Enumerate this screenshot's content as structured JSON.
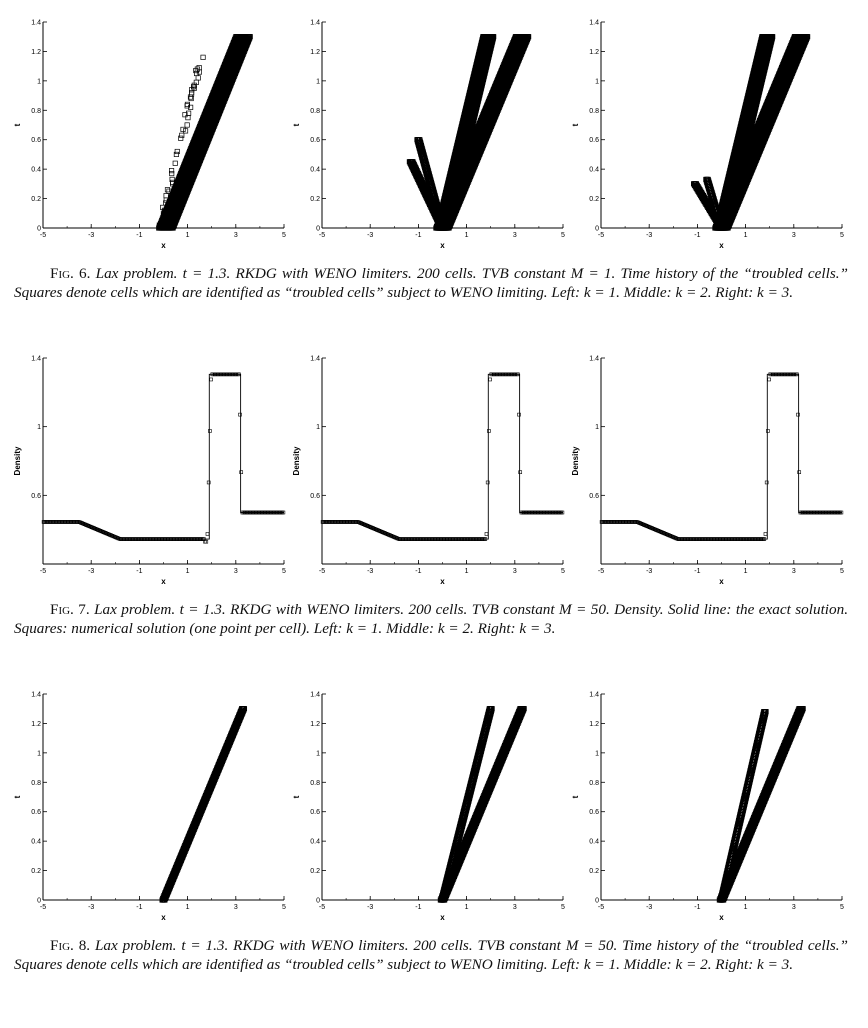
{
  "figures": [
    {
      "id": "fig6",
      "label": "Fig. 6.",
      "caption": "Lax problem. t = 1.3. RKDG with WENO limiters. 200 cells. TVB constant M = 1. Time history of the “troubled cells.” Squares denote cells which are identified as “troubled cells” subject to WENO limiting. Left: k = 1. Middle: k = 2. Right: k = 3.",
      "panels": [
        {
          "name": "Left",
          "xlabel": "x",
          "ylabel": "t"
        },
        {
          "name": "Middle",
          "xlabel": "x",
          "ylabel": "t"
        },
        {
          "name": "Right",
          "xlabel": "x",
          "ylabel": "t"
        }
      ]
    },
    {
      "id": "fig7",
      "label": "Fig. 7.",
      "caption": "Lax problem. t = 1.3. RKDG with WENO limiters. 200 cells. TVB constant M = 50. Density. Solid line: the exact solution. Squares: numerical solution (one point per cell). Left: k = 1. Middle: k = 2. Right: k = 3.",
      "panels": [
        {
          "name": "Left",
          "xlabel": "x",
          "ylabel": "Density"
        },
        {
          "name": "Middle",
          "xlabel": "x",
          "ylabel": "Density"
        },
        {
          "name": "Right",
          "xlabel": "x",
          "ylabel": "Density"
        }
      ]
    },
    {
      "id": "fig8",
      "label": "Fig. 8.",
      "caption": "Lax problem. t = 1.3. RKDG with WENO limiters. 200 cells. TVB constant M = 50. Time history of the “troubled cells.” Squares denote cells which are identified as “troubled cells” subject to WENO limiting. Left: k = 1. Middle: k = 2. Right: k = 3.",
      "panels": [
        {
          "name": "Left",
          "xlabel": "x",
          "ylabel": "t"
        },
        {
          "name": "Middle",
          "xlabel": "x",
          "ylabel": "t"
        },
        {
          "name": "Right",
          "xlabel": "x",
          "ylabel": "t"
        }
      ]
    }
  ],
  "chart_data": [
    {
      "figure": "fig6",
      "type": "scatter",
      "xlim": [
        -5,
        5
      ],
      "ylim": [
        0,
        1.4
      ],
      "xticks": [
        "-5",
        "-3",
        "-1",
        "1",
        "3",
        "5"
      ],
      "yticks": [
        "0",
        "0.2",
        "0.4",
        "0.6",
        "0.8",
        "1",
        "1.2",
        "1.4"
      ],
      "panels": [
        {
          "name": "Left",
          "bands": [
            {
              "x0": 0.1,
              "x1": 3.3,
              "t0": 0.0,
              "t1": 1.3,
              "width": 0.6,
              "density": 30
            },
            {
              "x0": -0.1,
              "x1": 1.7,
              "t0": 0.0,
              "t1": 1.22,
              "width": 0.15,
              "density": 4,
              "sparse": true
            }
          ]
        },
        {
          "name": "Middle",
          "bands": [
            {
              "x0": 0.0,
              "x1": 3.3,
              "t0": 0.0,
              "t1": 1.3,
              "width": 0.55,
              "density": 30
            },
            {
              "x0": 0.0,
              "x1": 1.9,
              "t0": 0.0,
              "t1": 1.3,
              "width": 0.45,
              "density": 30
            },
            {
              "x0": 0.0,
              "x1": -1.3,
              "t0": 0.0,
              "t1": 0.45,
              "width": 0.15,
              "density": 8
            },
            {
              "x0": 0.0,
              "x1": -1.0,
              "t0": 0.0,
              "t1": 0.6,
              "width": 0.12,
              "density": 6
            }
          ]
        },
        {
          "name": "Right",
          "bands": [
            {
              "x0": 0.0,
              "x1": 3.3,
              "t0": 0.0,
              "t1": 1.3,
              "width": 0.55,
              "density": 30
            },
            {
              "x0": 0.0,
              "x1": 1.9,
              "t0": 0.0,
              "t1": 1.3,
              "width": 0.45,
              "density": 30
            },
            {
              "x0": 0.0,
              "x1": -1.1,
              "t0": 0.0,
              "t1": 0.3,
              "width": 0.12,
              "density": 8
            },
            {
              "x0": 0.0,
              "x1": -0.6,
              "t0": 0.0,
              "t1": 0.33,
              "width": 0.1,
              "density": 6
            }
          ]
        }
      ]
    },
    {
      "figure": "fig7",
      "type": "line",
      "xlim": [
        -5,
        5
      ],
      "ylim": [
        0.2,
        1.4
      ],
      "xticks": [
        "-5",
        "-3",
        "-1",
        "1",
        "3",
        "5"
      ],
      "yticks": [
        "0.6",
        "1",
        "1.4"
      ],
      "exact": {
        "x": [
          -5,
          -3.5,
          -1.8,
          1.9,
          1.9,
          3.2,
          3.2,
          5
        ],
        "y": [
          0.445,
          0.445,
          0.345,
          0.345,
          1.305,
          1.305,
          0.5,
          0.5
        ]
      },
      "panels": [
        {
          "name": "Left",
          "overshoot": true
        },
        {
          "name": "Middle",
          "overshoot": false
        },
        {
          "name": "Right",
          "overshoot": false
        }
      ]
    },
    {
      "figure": "fig8",
      "type": "scatter",
      "xlim": [
        -5,
        5
      ],
      "ylim": [
        0,
        1.4
      ],
      "xticks": [
        "-5",
        "-3",
        "-1",
        "1",
        "3",
        "5"
      ],
      "yticks": [
        "0",
        "0.2",
        "0.4",
        "0.6",
        "0.8",
        "1",
        "1.2",
        "1.4"
      ],
      "panels": [
        {
          "name": "Left",
          "bands": [
            {
              "x0": 0.0,
              "x1": 3.3,
              "t0": 0.0,
              "t1": 1.3,
              "width": 0.12,
              "density": 8
            }
          ]
        },
        {
          "name": "Middle",
          "bands": [
            {
              "x0": 0.0,
              "x1": 3.3,
              "t0": 0.0,
              "t1": 1.3,
              "width": 0.18,
              "density": 10
            },
            {
              "x0": 0.0,
              "x1": 2.0,
              "t0": 0.0,
              "t1": 1.3,
              "width": 0.12,
              "density": 8
            }
          ]
        },
        {
          "name": "Right",
          "bands": [
            {
              "x0": 0.0,
              "x1": 3.3,
              "t0": 0.0,
              "t1": 1.3,
              "width": 0.18,
              "density": 10
            },
            {
              "x0": 0.0,
              "x1": 1.8,
              "t0": 0.0,
              "t1": 1.28,
              "width": 0.1,
              "density": 7
            }
          ]
        }
      ]
    }
  ]
}
